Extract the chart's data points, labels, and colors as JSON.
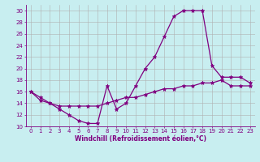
{
  "xlabel": "Windchill (Refroidissement éolien,°C)",
  "xlim": [
    -0.5,
    23.5
  ],
  "ylim": [
    10,
    31
  ],
  "xticks": [
    0,
    1,
    2,
    3,
    4,
    5,
    6,
    7,
    8,
    9,
    10,
    11,
    12,
    13,
    14,
    15,
    16,
    17,
    18,
    19,
    20,
    21,
    22,
    23
  ],
  "yticks": [
    10,
    12,
    14,
    16,
    18,
    20,
    22,
    24,
    26,
    28,
    30
  ],
  "line1_x": [
    0,
    1,
    2,
    3,
    4,
    5,
    6,
    7,
    8,
    9,
    10,
    11,
    12,
    13,
    14,
    15,
    16,
    17,
    18,
    19,
    20,
    21,
    22,
    23
  ],
  "line1_y": [
    16,
    15,
    14,
    13,
    12,
    11,
    10.5,
    10.5,
    17,
    13,
    14,
    17,
    20,
    22,
    25.5,
    29,
    30,
    30,
    30,
    20.5,
    18.5,
    18.5,
    18.5,
    17.5
  ],
  "line2_x": [
    0,
    1,
    2,
    3,
    4,
    5,
    6,
    7,
    8,
    9,
    10,
    11,
    12,
    13,
    14,
    15,
    16,
    17,
    18,
    19,
    20,
    21,
    22,
    23
  ],
  "line2_y": [
    16,
    14.5,
    14,
    13.5,
    13.5,
    13.5,
    13.5,
    13.5,
    14,
    14.5,
    15,
    15,
    15.5,
    16,
    16.5,
    16.5,
    17,
    17,
    17.5,
    17.5,
    18,
    17,
    17,
    17
  ],
  "line_color": "#800080",
  "bg_color": "#c8eef0",
  "grid_color": "#b0b0b0",
  "marker": "*",
  "markersize": 3.5,
  "linewidth": 0.9,
  "tick_fontsize": 5,
  "label_fontsize": 5.5
}
